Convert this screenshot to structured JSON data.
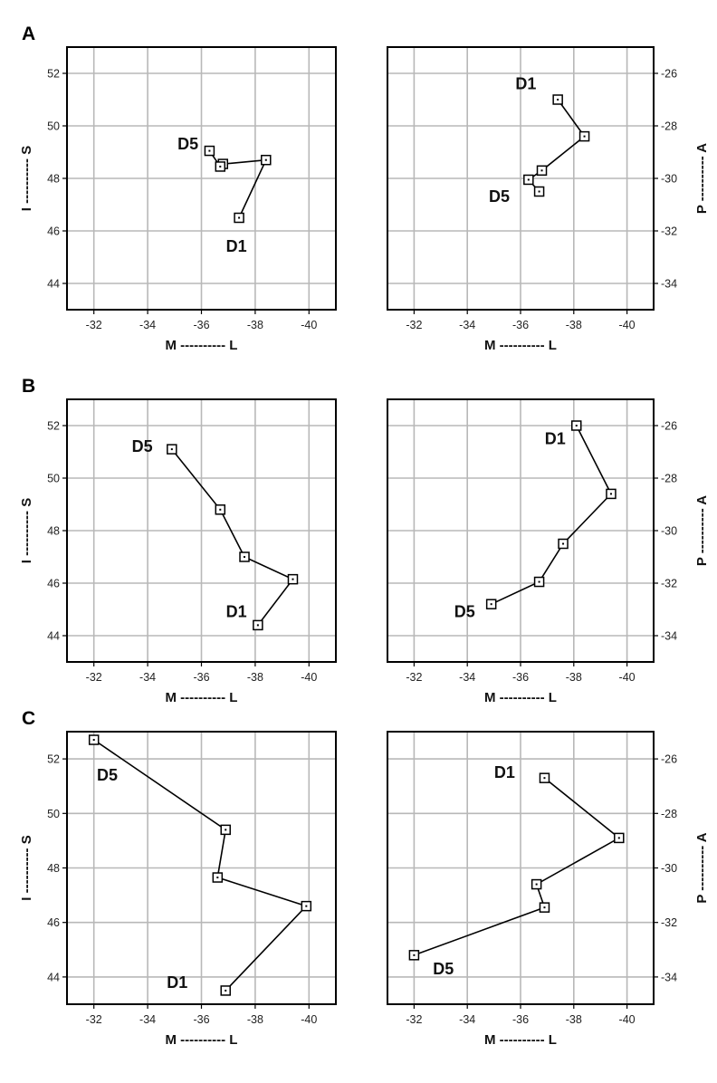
{
  "chart_data": [
    {
      "type": "line",
      "panel_label": "A",
      "view": "coronal",
      "xlabel": "M ---------- L",
      "ylabel": "I ---------- S",
      "xlim": [
        -31,
        -41
      ],
      "ylim": [
        43,
        53
      ],
      "xticks": [
        -32,
        -34,
        -36,
        -38,
        -40
      ],
      "yticks": [
        44,
        46,
        48,
        50,
        52
      ],
      "y_axis_side": "left",
      "grid": true,
      "series": [
        {
          "x": [
            -37.4,
            -38.4,
            -36.8,
            -36.7,
            -36.3
          ],
          "y": [
            46.5,
            48.7,
            48.55,
            48.45,
            49.05
          ]
        }
      ],
      "annotations": [
        {
          "text": "D1",
          "x": -37.3,
          "y": 45.2
        },
        {
          "text": "D5",
          "x": -35.5,
          "y": 49.1
        }
      ]
    },
    {
      "type": "line",
      "panel_label": "",
      "view": "horizontal",
      "xlabel": "M ---------- L",
      "ylabel": "P ---------- A",
      "xlim": [
        -31,
        -41
      ],
      "ylim": [
        -35,
        -25
      ],
      "xticks": [
        -32,
        -34,
        -36,
        -38,
        -40
      ],
      "yticks": [
        -26,
        -28,
        -30,
        -32,
        -34
      ],
      "y_axis_side": "right",
      "grid": true,
      "series": [
        {
          "x": [
            -37.4,
            -38.4,
            -36.8,
            -36.3,
            -36.7
          ],
          "y": [
            -27.0,
            -28.4,
            -29.7,
            -30.05,
            -30.5
          ]
        }
      ],
      "annotations": [
        {
          "text": "D1",
          "x": -36.2,
          "y": -26.6
        },
        {
          "text": "D5",
          "x": -35.2,
          "y": -30.9
        }
      ]
    },
    {
      "type": "line",
      "panel_label": "B",
      "view": "coronal",
      "xlabel": "M ---------- L",
      "ylabel": "I ---------- S",
      "xlim": [
        -31,
        -41
      ],
      "ylim": [
        43,
        53
      ],
      "xticks": [
        -32,
        -34,
        -36,
        -38,
        -40
      ],
      "yticks": [
        44,
        46,
        48,
        50,
        52
      ],
      "y_axis_side": "left",
      "grid": true,
      "series": [
        {
          "x": [
            -38.1,
            -39.4,
            -37.6,
            -36.7,
            -34.9
          ],
          "y": [
            44.4,
            46.15,
            47.0,
            48.8,
            51.1
          ]
        }
      ],
      "annotations": [
        {
          "text": "D1",
          "x": -37.3,
          "y": 44.7
        },
        {
          "text": "D5",
          "x": -33.8,
          "y": 51.0
        }
      ]
    },
    {
      "type": "line",
      "panel_label": "",
      "view": "horizontal",
      "xlabel": "M ---------- L",
      "ylabel": "P ---------- A",
      "xlim": [
        -31,
        -41
      ],
      "ylim": [
        -35,
        -25
      ],
      "xticks": [
        -32,
        -34,
        -36,
        -38,
        -40
      ],
      "yticks": [
        -26,
        -28,
        -30,
        -32,
        -34
      ],
      "y_axis_side": "right",
      "grid": true,
      "series": [
        {
          "x": [
            -38.1,
            -39.4,
            -37.6,
            -36.7,
            -34.9
          ],
          "y": [
            -26.0,
            -28.6,
            -30.5,
            -31.95,
            -32.8
          ]
        }
      ],
      "annotations": [
        {
          "text": "D1",
          "x": -37.3,
          "y": -26.7
        },
        {
          "text": "D5",
          "x": -33.9,
          "y": -33.3
        }
      ]
    },
    {
      "type": "line",
      "panel_label": "C",
      "view": "coronal",
      "xlabel": "M ---------- L",
      "ylabel": "I ---------- S",
      "xlim": [
        -31,
        -41
      ],
      "ylim": [
        43,
        53
      ],
      "xticks": [
        -32,
        -34,
        -36,
        -38,
        -40
      ],
      "yticks": [
        44,
        46,
        48,
        50,
        52
      ],
      "y_axis_side": "left",
      "grid": true,
      "series": [
        {
          "x": [
            -36.9,
            -39.9,
            -36.6,
            -36.9,
            -32.0
          ],
          "y": [
            43.5,
            46.6,
            47.65,
            49.4,
            52.7
          ]
        }
      ],
      "annotations": [
        {
          "text": "D1",
          "x": -35.1,
          "y": 43.6
        },
        {
          "text": "D5",
          "x": -32.5,
          "y": 51.2
        }
      ]
    },
    {
      "type": "line",
      "panel_label": "",
      "view": "horizontal",
      "xlabel": "M ---------- L",
      "ylabel": "P ---------- A",
      "xlim": [
        -31,
        -41
      ],
      "ylim": [
        -35,
        -25
      ],
      "xticks": [
        -32,
        -34,
        -36,
        -38,
        -40
      ],
      "yticks": [
        -26,
        -28,
        -30,
        -32,
        -34
      ],
      "y_axis_side": "right",
      "grid": true,
      "series": [
        {
          "x": [
            -36.9,
            -39.7,
            -36.6,
            -36.9,
            -32.0
          ],
          "y": [
            -26.7,
            -28.9,
            -30.6,
            -31.45,
            -33.2
          ]
        }
      ],
      "annotations": [
        {
          "text": "D1",
          "x": -35.4,
          "y": -26.7
        },
        {
          "text": "D5",
          "x": -33.1,
          "y": -33.9
        }
      ]
    }
  ]
}
